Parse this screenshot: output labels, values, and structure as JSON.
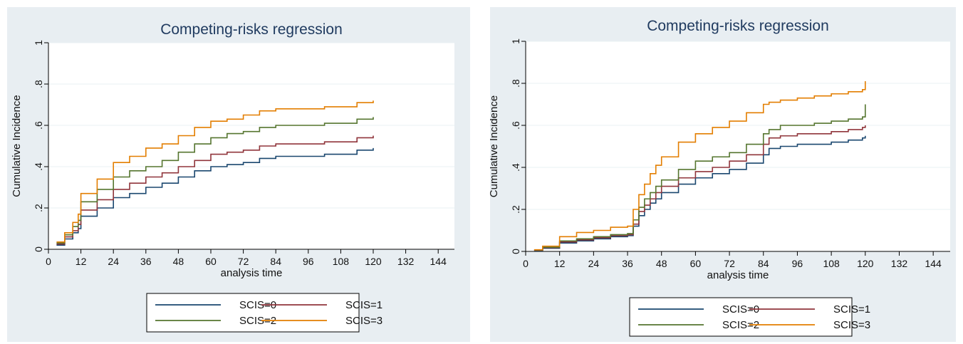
{
  "colors": {
    "SCIS=0": "#1a476f",
    "SCIS=1": "#90353b",
    "SCIS=2": "#55752f",
    "SCIS=3": "#e37e00"
  },
  "chart_data": [
    {
      "type": "line",
      "title": "Competing-risks regression",
      "xlabel": "analysis time",
      "ylabel": "Cumulative Incidence",
      "xlim": [
        0,
        150
      ],
      "ylim": [
        0,
        1
      ],
      "xticks": [
        0,
        12,
        24,
        36,
        48,
        60,
        72,
        84,
        96,
        108,
        120,
        132,
        144
      ],
      "yticks": [
        0,
        0.2,
        0.4,
        0.6,
        0.8,
        1
      ],
      "ytick_labels": [
        "0",
        ".2",
        ".4",
        ".6",
        ".8",
        "1"
      ],
      "grid": true,
      "legend": "bottom",
      "series": [
        {
          "name": "SCIS=0",
          "x": [
            3,
            6,
            9,
            11,
            12,
            18,
            24,
            30,
            36,
            42,
            48,
            54,
            60,
            66,
            72,
            78,
            84,
            90,
            96,
            102,
            108,
            114,
            120
          ],
          "y": [
            0.02,
            0.05,
            0.08,
            0.1,
            0.16,
            0.2,
            0.25,
            0.27,
            0.3,
            0.32,
            0.35,
            0.38,
            0.4,
            0.41,
            0.42,
            0.44,
            0.45,
            0.45,
            0.45,
            0.46,
            0.46,
            0.48,
            0.49
          ]
        },
        {
          "name": "SCIS=1",
          "x": [
            3,
            6,
            9,
            11,
            12,
            18,
            24,
            30,
            36,
            42,
            48,
            54,
            60,
            66,
            72,
            78,
            84,
            90,
            96,
            102,
            108,
            114,
            120
          ],
          "y": [
            0.025,
            0.06,
            0.09,
            0.12,
            0.19,
            0.24,
            0.29,
            0.32,
            0.35,
            0.37,
            0.4,
            0.43,
            0.46,
            0.47,
            0.48,
            0.5,
            0.51,
            0.51,
            0.51,
            0.52,
            0.52,
            0.54,
            0.55
          ]
        },
        {
          "name": "SCIS=2",
          "x": [
            3,
            6,
            9,
            11,
            12,
            18,
            24,
            30,
            36,
            42,
            48,
            54,
            60,
            66,
            72,
            78,
            84,
            90,
            96,
            102,
            108,
            114,
            120
          ],
          "y": [
            0.03,
            0.07,
            0.11,
            0.14,
            0.23,
            0.29,
            0.35,
            0.38,
            0.4,
            0.43,
            0.47,
            0.51,
            0.54,
            0.56,
            0.57,
            0.59,
            0.6,
            0.6,
            0.6,
            0.61,
            0.61,
            0.63,
            0.64
          ]
        },
        {
          "name": "SCIS=3",
          "x": [
            3,
            6,
            9,
            11,
            12,
            18,
            24,
            30,
            36,
            42,
            48,
            54,
            60,
            66,
            72,
            78,
            84,
            90,
            96,
            102,
            108,
            114,
            120
          ],
          "y": [
            0.035,
            0.08,
            0.13,
            0.17,
            0.27,
            0.34,
            0.42,
            0.45,
            0.49,
            0.51,
            0.55,
            0.59,
            0.62,
            0.63,
            0.65,
            0.67,
            0.68,
            0.68,
            0.68,
            0.69,
            0.69,
            0.71,
            0.72
          ]
        }
      ]
    },
    {
      "type": "line",
      "title": "Competing-risks regression",
      "xlabel": "analysis time",
      "ylabel": "Cumulative Incidence",
      "xlim": [
        0,
        150
      ],
      "ylim": [
        0,
        1
      ],
      "xticks": [
        0,
        12,
        24,
        36,
        48,
        60,
        72,
        84,
        96,
        108,
        120,
        132,
        144
      ],
      "yticks": [
        0,
        0.2,
        0.4,
        0.6,
        0.8,
        1
      ],
      "ytick_labels": [
        "0",
        ".2",
        ".4",
        ".6",
        ".8",
        "1"
      ],
      "grid": true,
      "legend": "bottom",
      "series": [
        {
          "name": "SCIS=0",
          "x": [
            3,
            6,
            12,
            18,
            24,
            30,
            36,
            38,
            40,
            42,
            44,
            46,
            48,
            54,
            60,
            66,
            72,
            78,
            84,
            86,
            90,
            96,
            102,
            108,
            114,
            119,
            120
          ],
          "y": [
            0.005,
            0.015,
            0.04,
            0.05,
            0.06,
            0.07,
            0.075,
            0.12,
            0.17,
            0.2,
            0.23,
            0.25,
            0.28,
            0.32,
            0.35,
            0.37,
            0.39,
            0.42,
            0.46,
            0.49,
            0.5,
            0.51,
            0.51,
            0.52,
            0.53,
            0.54,
            0.55
          ]
        },
        {
          "name": "SCIS=1",
          "x": [
            3,
            6,
            12,
            18,
            24,
            30,
            36,
            38,
            40,
            42,
            44,
            46,
            48,
            54,
            60,
            66,
            72,
            78,
            84,
            86,
            90,
            96,
            102,
            108,
            114,
            119,
            120
          ],
          "y": [
            0.006,
            0.018,
            0.045,
            0.055,
            0.065,
            0.075,
            0.08,
            0.13,
            0.19,
            0.22,
            0.25,
            0.28,
            0.31,
            0.35,
            0.38,
            0.4,
            0.43,
            0.46,
            0.51,
            0.54,
            0.55,
            0.56,
            0.56,
            0.57,
            0.58,
            0.59,
            0.6
          ]
        },
        {
          "name": "SCIS=2",
          "x": [
            3,
            6,
            12,
            18,
            24,
            30,
            36,
            38,
            40,
            42,
            44,
            46,
            48,
            54,
            60,
            66,
            72,
            78,
            84,
            86,
            90,
            96,
            102,
            108,
            114,
            119,
            120
          ],
          "y": [
            0.007,
            0.02,
            0.05,
            0.06,
            0.07,
            0.08,
            0.085,
            0.15,
            0.21,
            0.25,
            0.28,
            0.31,
            0.34,
            0.39,
            0.43,
            0.45,
            0.47,
            0.51,
            0.56,
            0.58,
            0.6,
            0.6,
            0.61,
            0.62,
            0.63,
            0.64,
            0.7
          ]
        },
        {
          "name": "SCIS=3",
          "x": [
            3,
            6,
            12,
            18,
            24,
            30,
            36,
            38,
            40,
            42,
            44,
            46,
            48,
            54,
            60,
            66,
            72,
            78,
            84,
            86,
            90,
            96,
            102,
            108,
            114,
            119,
            120
          ],
          "y": [
            0.008,
            0.025,
            0.07,
            0.09,
            0.1,
            0.115,
            0.12,
            0.2,
            0.27,
            0.32,
            0.37,
            0.41,
            0.45,
            0.52,
            0.56,
            0.59,
            0.62,
            0.66,
            0.7,
            0.71,
            0.72,
            0.73,
            0.74,
            0.75,
            0.76,
            0.77,
            0.81
          ]
        }
      ]
    }
  ]
}
